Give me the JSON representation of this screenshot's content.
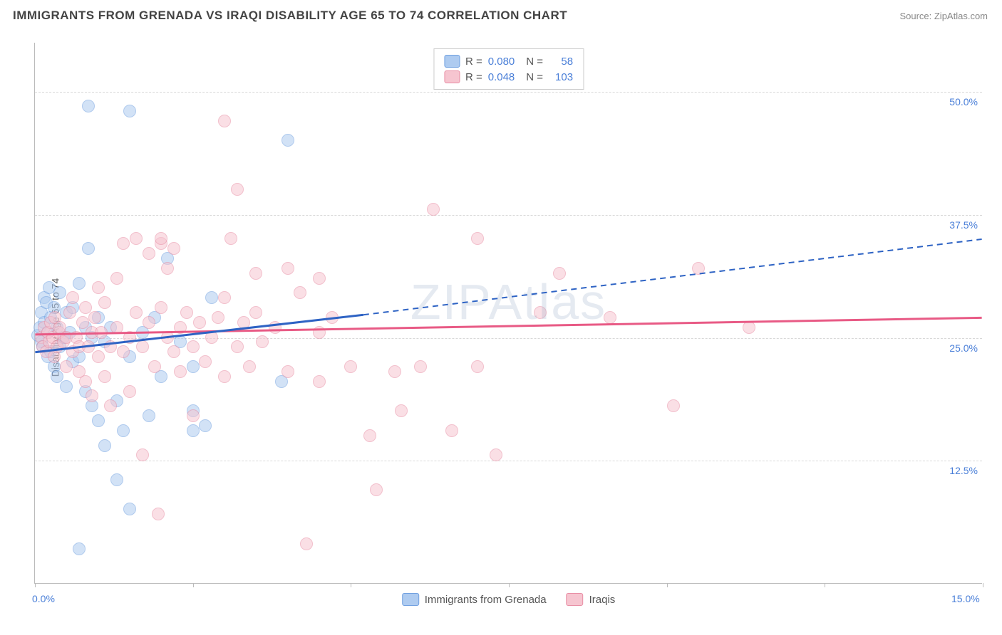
{
  "title": "IMMIGRANTS FROM GRENADA VS IRAQI DISABILITY AGE 65 TO 74 CORRELATION CHART",
  "source": "Source: ZipAtlas.com",
  "ylabel": "Disability Age 65 to 74",
  "watermark": "ZIPAtlas",
  "chart": {
    "type": "scatter",
    "xlim": [
      0,
      15
    ],
    "ylim": [
      0,
      55
    ],
    "x_ticks": [
      0,
      2.5,
      5,
      7.5,
      10,
      12.5,
      15
    ],
    "x_tick_labels_shown": {
      "0": "0.0%",
      "15": "15.0%"
    },
    "y_gridlines": [
      12.5,
      25.0,
      37.5,
      50.0
    ],
    "y_tick_labels": [
      "12.5%",
      "25.0%",
      "37.5%",
      "50.0%"
    ],
    "background_color": "#ffffff",
    "grid_color": "#d8d8d8",
    "axis_color": "#bbbbbb",
    "tick_label_color": "#4a7fd8",
    "point_radius": 9,
    "point_opacity": 0.55,
    "series": [
      {
        "name": "Immigrants from Grenada",
        "color_fill": "#aecbf0",
        "color_stroke": "#6f9fe0",
        "R": "0.080",
        "N": "58",
        "trend": {
          "x1": 0,
          "y1": 23.5,
          "x2": 5.2,
          "y2": 27.3,
          "dash_x2": 15,
          "dash_y2": 35.0,
          "stroke": "#2e63c4",
          "width": 3
        },
        "points": [
          [
            0.05,
            25.2
          ],
          [
            0.08,
            26.0
          ],
          [
            0.1,
            24.5
          ],
          [
            0.1,
            27.5
          ],
          [
            0.12,
            24.0
          ],
          [
            0.15,
            29.0
          ],
          [
            0.15,
            26.5
          ],
          [
            0.18,
            28.5
          ],
          [
            0.2,
            25.5
          ],
          [
            0.2,
            23.0
          ],
          [
            0.22,
            30.0
          ],
          [
            0.25,
            27.0
          ],
          [
            0.25,
            23.5
          ],
          [
            0.3,
            28.0
          ],
          [
            0.3,
            22.0
          ],
          [
            0.35,
            26.0
          ],
          [
            0.35,
            21.0
          ],
          [
            0.4,
            29.5
          ],
          [
            0.4,
            24.0
          ],
          [
            0.45,
            25.0
          ],
          [
            0.5,
            27.5
          ],
          [
            0.5,
            20.0
          ],
          [
            0.55,
            25.5
          ],
          [
            0.6,
            28.0
          ],
          [
            0.6,
            22.5
          ],
          [
            0.7,
            30.5
          ],
          [
            0.7,
            23.0
          ],
          [
            0.8,
            26.0
          ],
          [
            0.8,
            19.5
          ],
          [
            0.85,
            48.5
          ],
          [
            0.85,
            34.0
          ],
          [
            0.9,
            25.0
          ],
          [
            0.9,
            18.0
          ],
          [
            1.0,
            27.0
          ],
          [
            1.0,
            16.5
          ],
          [
            1.1,
            24.5
          ],
          [
            1.1,
            14.0
          ],
          [
            1.2,
            26.0
          ],
          [
            1.3,
            18.5
          ],
          [
            1.3,
            10.5
          ],
          [
            1.4,
            15.5
          ],
          [
            1.5,
            7.5
          ],
          [
            1.5,
            23.0
          ],
          [
            1.5,
            48.0
          ],
          [
            1.7,
            25.5
          ],
          [
            1.8,
            17.0
          ],
          [
            1.9,
            27.0
          ],
          [
            2.0,
            21.0
          ],
          [
            2.1,
            33.0
          ],
          [
            2.3,
            24.5
          ],
          [
            2.5,
            17.5
          ],
          [
            2.5,
            15.5
          ],
          [
            2.5,
            22.0
          ],
          [
            2.7,
            16.0
          ],
          [
            2.8,
            29.0
          ],
          [
            3.9,
            20.5
          ],
          [
            4.0,
            45.0
          ],
          [
            0.7,
            3.5
          ]
        ]
      },
      {
        "name": "Iraqis",
        "color_fill": "#f6c5d0",
        "color_stroke": "#e88da4",
        "R": "0.048",
        "N": "103",
        "trend": {
          "x1": 0,
          "y1": 25.3,
          "x2": 15,
          "y2": 27.0,
          "stroke": "#e85a85",
          "width": 3
        },
        "points": [
          [
            0.1,
            25.0
          ],
          [
            0.12,
            24.0
          ],
          [
            0.15,
            26.0
          ],
          [
            0.18,
            23.5
          ],
          [
            0.2,
            25.5
          ],
          [
            0.22,
            24.5
          ],
          [
            0.25,
            26.5
          ],
          [
            0.28,
            25.0
          ],
          [
            0.3,
            23.0
          ],
          [
            0.32,
            27.0
          ],
          [
            0.35,
            24.0
          ],
          [
            0.38,
            25.5
          ],
          [
            0.4,
            26.0
          ],
          [
            0.45,
            24.5
          ],
          [
            0.5,
            25.0
          ],
          [
            0.5,
            22.0
          ],
          [
            0.55,
            27.5
          ],
          [
            0.6,
            23.5
          ],
          [
            0.6,
            29.0
          ],
          [
            0.65,
            25.0
          ],
          [
            0.7,
            24.0
          ],
          [
            0.7,
            21.5
          ],
          [
            0.75,
            26.5
          ],
          [
            0.8,
            20.5
          ],
          [
            0.8,
            28.0
          ],
          [
            0.85,
            24.0
          ],
          [
            0.9,
            25.5
          ],
          [
            0.9,
            19.0
          ],
          [
            0.95,
            27.0
          ],
          [
            1.0,
            23.0
          ],
          [
            1.0,
            30.0
          ],
          [
            1.05,
            25.5
          ],
          [
            1.1,
            21.0
          ],
          [
            1.1,
            28.5
          ],
          [
            1.2,
            24.0
          ],
          [
            1.2,
            18.0
          ],
          [
            1.3,
            26.0
          ],
          [
            1.3,
            31.0
          ],
          [
            1.4,
            23.5
          ],
          [
            1.4,
            34.5
          ],
          [
            1.5,
            25.0
          ],
          [
            1.5,
            19.5
          ],
          [
            1.6,
            27.5
          ],
          [
            1.6,
            35.0
          ],
          [
            1.7,
            24.0
          ],
          [
            1.7,
            13.0
          ],
          [
            1.8,
            26.5
          ],
          [
            1.8,
            33.5
          ],
          [
            1.9,
            22.0
          ],
          [
            1.95,
            7.0
          ],
          [
            2.0,
            28.0
          ],
          [
            2.0,
            34.5
          ],
          [
            2.0,
            35.0
          ],
          [
            2.1,
            25.0
          ],
          [
            2.1,
            32.0
          ],
          [
            2.2,
            23.5
          ],
          [
            2.2,
            34.0
          ],
          [
            2.3,
            26.0
          ],
          [
            2.3,
            21.5
          ],
          [
            2.4,
            27.5
          ],
          [
            2.5,
            24.0
          ],
          [
            2.5,
            17.0
          ],
          [
            2.6,
            26.5
          ],
          [
            2.7,
            22.5
          ],
          [
            2.8,
            25.0
          ],
          [
            2.9,
            27.0
          ],
          [
            3.0,
            21.0
          ],
          [
            3.0,
            47.0
          ],
          [
            3.0,
            29.0
          ],
          [
            3.1,
            35.0
          ],
          [
            3.2,
            24.0
          ],
          [
            3.2,
            40.0
          ],
          [
            3.3,
            26.5
          ],
          [
            3.4,
            22.0
          ],
          [
            3.5,
            27.5
          ],
          [
            3.5,
            31.5
          ],
          [
            3.6,
            24.5
          ],
          [
            3.8,
            26.0
          ],
          [
            4.0,
            21.5
          ],
          [
            4.0,
            32.0
          ],
          [
            4.2,
            29.5
          ],
          [
            4.3,
            4.0
          ],
          [
            4.5,
            20.5
          ],
          [
            4.5,
            25.5
          ],
          [
            4.5,
            31.0
          ],
          [
            4.7,
            27.0
          ],
          [
            5.0,
            22.0
          ],
          [
            5.3,
            15.0
          ],
          [
            5.4,
            9.5
          ],
          [
            5.7,
            21.5
          ],
          [
            5.8,
            17.5
          ],
          [
            6.1,
            22.0
          ],
          [
            6.3,
            38.0
          ],
          [
            6.6,
            15.5
          ],
          [
            7.0,
            22.0
          ],
          [
            7.0,
            35.0
          ],
          [
            7.3,
            13.0
          ],
          [
            8.0,
            27.5
          ],
          [
            8.3,
            31.5
          ],
          [
            9.1,
            27.0
          ],
          [
            10.1,
            18.0
          ],
          [
            10.5,
            32.0
          ],
          [
            11.3,
            26.0
          ]
        ]
      }
    ],
    "legend_bottom": [
      {
        "label": "Immigrants from Grenada",
        "fill": "#aecbf0",
        "stroke": "#6f9fe0"
      },
      {
        "label": "Iraqis",
        "fill": "#f6c5d0",
        "stroke": "#e88da4"
      }
    ]
  }
}
